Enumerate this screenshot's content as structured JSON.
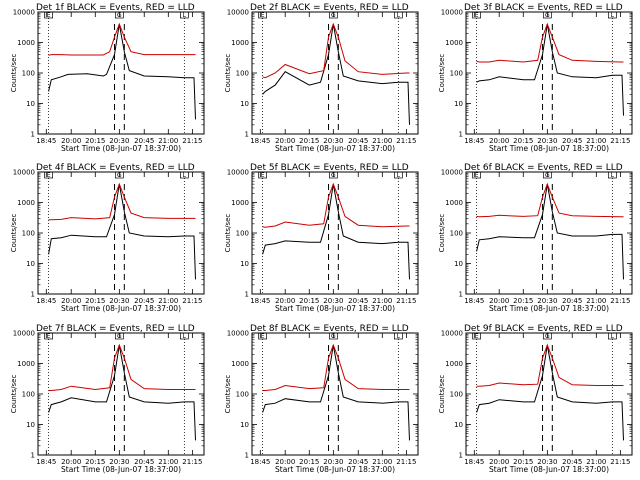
{
  "chart_data": [
    {
      "type": "line",
      "title": "Det 1f BLACK = Events, RED = LLD",
      "xlabel": "Start Time (08-Jun-07 18:37:00)",
      "ylabel": "Counts/sec",
      "xticks": [
        "18:45",
        "20:00",
        "20:15",
        "20:30",
        "20:45",
        "21:00",
        "21:15"
      ],
      "yticks": [
        "1",
        "10",
        "100",
        "1000",
        "10000"
      ],
      "yscale": "log",
      "ylim": [
        1,
        10000
      ],
      "series": [
        {
          "name": "BLACK = Events",
          "color": "#000000",
          "x": [
            "18:52",
            "19:00",
            "19:30",
            "19:50",
            "20:10",
            "20:20",
            "20:22",
            "20:27",
            "20:30",
            "20:33",
            "20:36",
            "20:45",
            "21:00",
            "21:10",
            "21:16",
            "21:17"
          ],
          "y": [
            25,
            60,
            75,
            90,
            95,
            80,
            90,
            400,
            4000,
            500,
            120,
            80,
            75,
            70,
            70,
            3
          ]
        },
        {
          "name": "RED = LLD",
          "color": "#cc0000",
          "x": [
            "18:52",
            "19:00",
            "19:30",
            "20:00",
            "20:20",
            "20:24",
            "20:27",
            "20:30",
            "20:33",
            "20:37",
            "20:45",
            "21:00",
            "21:15",
            "21:17"
          ],
          "y": [
            380,
            400,
            400,
            390,
            390,
            500,
            1500,
            4000,
            1500,
            500,
            400,
            400,
            400,
            400
          ]
        }
      ]
    },
    {
      "type": "line",
      "title": "Det 2f BLACK = Events, RED = LLD",
      "xlabel": "Start Time (08-Jun-07 18:37:00)",
      "ylabel": "Counts/sec",
      "xticks": [
        "18:45",
        "20:00",
        "20:15",
        "20:30",
        "20:45",
        "21:00",
        "21:15"
      ],
      "yticks": [
        "1",
        "10",
        "100",
        "1000",
        "10000"
      ],
      "yscale": "log",
      "ylim": [
        1,
        10000
      ],
      "series": [
        {
          "name": "BLACK = Events",
          "color": "#000000",
          "x": [
            "18:52",
            "19:00",
            "19:30",
            "20:00",
            "20:15",
            "20:22",
            "20:27",
            "20:30",
            "20:33",
            "20:36",
            "20:45",
            "21:00",
            "21:10",
            "21:16",
            "21:17"
          ],
          "y": [
            20,
            25,
            40,
            110,
            40,
            50,
            400,
            4000,
            500,
            80,
            55,
            45,
            50,
            50,
            2
          ]
        },
        {
          "name": "RED = LLD",
          "color": "#cc0000",
          "x": [
            "18:52",
            "19:00",
            "19:30",
            "20:00",
            "20:15",
            "20:24",
            "20:27",
            "20:30",
            "20:33",
            "20:37",
            "20:45",
            "21:00",
            "21:15",
            "21:17"
          ],
          "y": [
            75,
            70,
            100,
            190,
            95,
            120,
            1500,
            4000,
            1500,
            250,
            110,
            90,
            100,
            100
          ]
        }
      ]
    },
    {
      "type": "line",
      "title": "Det 3f BLACK = Events, RED = LLD",
      "xlabel": "Start Time (08-Jun-07 18:37:00)",
      "ylabel": "Counts/sec",
      "xticks": [
        "18:45",
        "20:00",
        "20:15",
        "20:30",
        "20:45",
        "21:00",
        "21:15"
      ],
      "yticks": [
        "1",
        "10",
        "100",
        "1000",
        "10000"
      ],
      "yscale": "log",
      "ylim": [
        1,
        10000
      ],
      "series": [
        {
          "name": "BLACK = Events",
          "color": "#000000",
          "x": [
            "18:52",
            "19:00",
            "19:30",
            "20:00",
            "20:15",
            "20:22",
            "20:27",
            "20:30",
            "20:33",
            "20:36",
            "20:45",
            "21:00",
            "21:10",
            "21:16",
            "21:17"
          ],
          "y": [
            50,
            55,
            60,
            75,
            60,
            60,
            400,
            4000,
            500,
            100,
            75,
            70,
            85,
            85,
            4
          ]
        },
        {
          "name": "RED = LLD",
          "color": "#cc0000",
          "x": [
            "18:52",
            "19:00",
            "19:30",
            "20:00",
            "20:15",
            "20:24",
            "20:27",
            "20:30",
            "20:33",
            "20:37",
            "20:45",
            "21:00",
            "21:15",
            "21:17"
          ],
          "y": [
            240,
            230,
            230,
            260,
            230,
            260,
            1500,
            4000,
            1500,
            400,
            260,
            240,
            230,
            230
          ]
        }
      ]
    },
    {
      "type": "line",
      "title": "Det 4f BLACK = Events, RED = LLD",
      "xlabel": "Start Time (08-Jun-07 18:37:00)",
      "ylabel": "Counts/sec",
      "xticks": [
        "18:45",
        "20:00",
        "20:15",
        "20:30",
        "20:45",
        "21:00",
        "21:15"
      ],
      "yticks": [
        "1",
        "10",
        "100",
        "1000",
        "10000"
      ],
      "yscale": "log",
      "ylim": [
        1,
        10000
      ],
      "series": [
        {
          "name": "BLACK = Events",
          "color": "#000000",
          "x": [
            "18:52",
            "19:00",
            "19:30",
            "20:00",
            "20:15",
            "20:22",
            "20:27",
            "20:30",
            "20:33",
            "20:36",
            "20:45",
            "21:00",
            "21:10",
            "21:16",
            "21:17"
          ],
          "y": [
            20,
            65,
            70,
            85,
            75,
            75,
            400,
            4000,
            500,
            100,
            80,
            75,
            80,
            80,
            3
          ]
        },
        {
          "name": "RED = LLD",
          "color": "#cc0000",
          "x": [
            "18:52",
            "19:00",
            "19:30",
            "20:00",
            "20:15",
            "20:24",
            "20:27",
            "20:30",
            "20:33",
            "20:37",
            "20:45",
            "21:00",
            "21:15",
            "21:17"
          ],
          "y": [
            270,
            270,
            280,
            320,
            290,
            320,
            1500,
            4000,
            1500,
            450,
            320,
            300,
            300,
            300
          ]
        }
      ]
    },
    {
      "type": "line",
      "title": "Det 5f BLACK = Events, RED = LLD",
      "xlabel": "Start Time (08-Jun-07 18:37:00)",
      "ylabel": "Counts/sec",
      "xticks": [
        "18:45",
        "20:00",
        "20:15",
        "20:30",
        "20:45",
        "21:00",
        "21:15"
      ],
      "yticks": [
        "1",
        "10",
        "100",
        "1000",
        "10000"
      ],
      "yscale": "log",
      "ylim": [
        1,
        10000
      ],
      "series": [
        {
          "name": "BLACK = Events",
          "color": "#000000",
          "x": [
            "18:52",
            "19:00",
            "19:30",
            "20:00",
            "20:15",
            "20:22",
            "20:27",
            "20:30",
            "20:33",
            "20:36",
            "20:45",
            "21:00",
            "21:10",
            "21:16",
            "21:17"
          ],
          "y": [
            20,
            40,
            45,
            55,
            50,
            50,
            400,
            4000,
            500,
            80,
            50,
            45,
            50,
            50,
            3
          ]
        },
        {
          "name": "RED = LLD",
          "color": "#cc0000",
          "x": [
            "18:52",
            "19:00",
            "19:30",
            "20:00",
            "20:15",
            "20:24",
            "20:27",
            "20:30",
            "20:33",
            "20:37",
            "20:45",
            "21:00",
            "21:15",
            "21:17"
          ],
          "y": [
            160,
            155,
            170,
            230,
            180,
            200,
            1500,
            4000,
            1500,
            350,
            180,
            160,
            170,
            170
          ]
        }
      ]
    },
    {
      "type": "line",
      "title": "Det 6f BLACK = Events, RED = LLD",
      "xlabel": "Start Time (08-Jun-07 18:37:00)",
      "ylabel": "Counts/sec",
      "xticks": [
        "18:45",
        "20:00",
        "20:15",
        "20:30",
        "20:45",
        "21:00",
        "21:15"
      ],
      "yticks": [
        "1",
        "10",
        "100",
        "1000",
        "10000"
      ],
      "yscale": "log",
      "ylim": [
        1,
        10000
      ],
      "series": [
        {
          "name": "BLACK = Events",
          "color": "#000000",
          "x": [
            "18:52",
            "19:00",
            "19:30",
            "20:00",
            "20:15",
            "20:22",
            "20:27",
            "20:30",
            "20:33",
            "20:36",
            "20:45",
            "21:00",
            "21:10",
            "21:16",
            "21:17"
          ],
          "y": [
            25,
            60,
            65,
            75,
            70,
            70,
            400,
            4000,
            500,
            100,
            80,
            80,
            90,
            90,
            3
          ]
        },
        {
          "name": "RED = LLD",
          "color": "#cc0000",
          "x": [
            "18:52",
            "19:00",
            "19:30",
            "20:00",
            "20:15",
            "20:24",
            "20:27",
            "20:30",
            "20:33",
            "20:37",
            "20:45",
            "21:00",
            "21:15",
            "21:17"
          ],
          "y": [
            350,
            340,
            350,
            380,
            350,
            370,
            1500,
            4000,
            1500,
            450,
            370,
            350,
            340,
            340
          ]
        }
      ]
    },
    {
      "type": "line",
      "title": "Det 7f BLACK = Events, RED = LLD",
      "xlabel": "Start Time (08-Jun-07 18:37:00)",
      "ylabel": "Counts/sec",
      "xticks": [
        "18:45",
        "20:00",
        "20:15",
        "20:30",
        "20:45",
        "21:00",
        "21:15"
      ],
      "yticks": [
        "1",
        "10",
        "100",
        "1000",
        "10000"
      ],
      "yscale": "log",
      "ylim": [
        1,
        10000
      ],
      "series": [
        {
          "name": "BLACK = Events",
          "color": "#000000",
          "x": [
            "18:52",
            "19:00",
            "19:30",
            "20:00",
            "20:15",
            "20:22",
            "20:27",
            "20:30",
            "20:33",
            "20:36",
            "20:45",
            "21:00",
            "21:10",
            "21:16",
            "21:17"
          ],
          "y": [
            25,
            45,
            55,
            75,
            55,
            55,
            400,
            4000,
            500,
            80,
            55,
            50,
            55,
            55,
            3
          ]
        },
        {
          "name": "RED = LLD",
          "color": "#cc0000",
          "x": [
            "18:52",
            "19:00",
            "19:30",
            "20:00",
            "20:15",
            "20:24",
            "20:27",
            "20:30",
            "20:33",
            "20:37",
            "20:45",
            "21:00",
            "21:15",
            "21:17"
          ],
          "y": [
            130,
            130,
            140,
            180,
            140,
            160,
            1500,
            4000,
            1500,
            300,
            150,
            140,
            140,
            140
          ]
        }
      ]
    },
    {
      "type": "line",
      "title": "Det 8f BLACK = Events, RED = LLD",
      "xlabel": "Start Time (08-Jun-07 18:37:00)",
      "ylabel": "Counts/sec",
      "xticks": [
        "18:45",
        "20:00",
        "20:15",
        "20:30",
        "20:45",
        "21:00",
        "21:15"
      ],
      "yticks": [
        "1",
        "10",
        "100",
        "1000",
        "10000"
      ],
      "yscale": "log",
      "ylim": [
        1,
        10000
      ],
      "series": [
        {
          "name": "BLACK = Events",
          "color": "#000000",
          "x": [
            "18:52",
            "19:00",
            "19:30",
            "20:00",
            "20:15",
            "20:22",
            "20:27",
            "20:30",
            "20:33",
            "20:36",
            "20:45",
            "21:00",
            "21:10",
            "21:16",
            "21:17"
          ],
          "y": [
            25,
            45,
            50,
            70,
            55,
            55,
            400,
            4000,
            500,
            80,
            55,
            50,
            55,
            55,
            3
          ]
        },
        {
          "name": "RED = LLD",
          "color": "#cc0000",
          "x": [
            "18:52",
            "19:00",
            "19:30",
            "20:00",
            "20:15",
            "20:24",
            "20:27",
            "20:30",
            "20:33",
            "20:37",
            "20:45",
            "21:00",
            "21:15",
            "21:17"
          ],
          "y": [
            130,
            130,
            140,
            190,
            150,
            160,
            1500,
            4000,
            1500,
            300,
            150,
            140,
            140,
            140
          ]
        }
      ]
    },
    {
      "type": "line",
      "title": "Det 9f BLACK = Events, RED = LLD",
      "xlabel": "Start Time (08-Jun-07 18:37:00)",
      "ylabel": "Counts/sec",
      "xticks": [
        "18:45",
        "20:00",
        "20:15",
        "20:30",
        "20:45",
        "21:00",
        "21:15"
      ],
      "yticks": [
        "1",
        "10",
        "100",
        "1000",
        "10000"
      ],
      "yscale": "log",
      "ylim": [
        1,
        10000
      ],
      "series": [
        {
          "name": "BLACK = Events",
          "color": "#000000",
          "x": [
            "18:52",
            "19:00",
            "19:30",
            "20:00",
            "20:15",
            "20:22",
            "20:27",
            "20:30",
            "20:33",
            "20:36",
            "20:45",
            "21:00",
            "21:10",
            "21:16",
            "21:17"
          ],
          "y": [
            25,
            45,
            50,
            65,
            55,
            55,
            400,
            4000,
            500,
            80,
            55,
            50,
            55,
            55,
            3
          ]
        },
        {
          "name": "RED = LLD",
          "color": "#cc0000",
          "x": [
            "18:52",
            "19:00",
            "19:30",
            "20:00",
            "20:15",
            "20:24",
            "20:27",
            "20:30",
            "20:33",
            "20:37",
            "20:45",
            "21:00",
            "21:15",
            "21:17"
          ],
          "y": [
            180,
            180,
            190,
            230,
            200,
            210,
            1500,
            4000,
            1500,
            350,
            200,
            190,
            190,
            190
          ]
        }
      ]
    }
  ],
  "colors": {
    "events": "#000000",
    "lld": "#cc0000",
    "axis": "#000000",
    "background": "#ffffff"
  },
  "markers": {
    "dotted_times": [
      "18:52",
      "21:10"
    ],
    "dashed_times": [
      "20:27",
      "20:33"
    ],
    "top_flags": [
      {
        "time": "18:52",
        "label": "E"
      },
      {
        "time": "20:30",
        "label": "G"
      },
      {
        "time": "21:10",
        "label": "L"
      }
    ]
  }
}
